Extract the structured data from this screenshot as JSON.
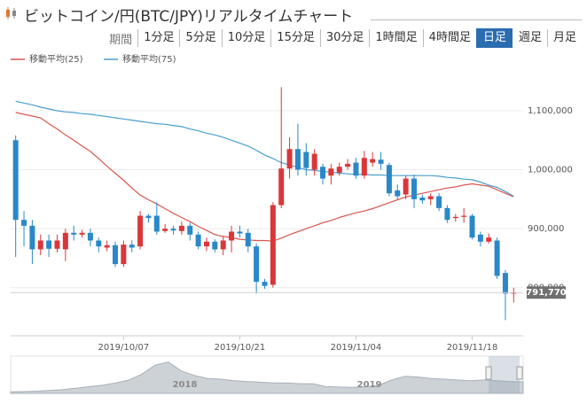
{
  "header": {
    "title": "ビットコイン/円(BTC/JPY)リアルタイムチャート"
  },
  "toolbar": {
    "period_label": "期間",
    "periods": [
      "1分足",
      "5分足",
      "10分足",
      "15分足",
      "30分足",
      "1時間足",
      "4時間足",
      "日足",
      "週足",
      "月足"
    ],
    "active_period": "日足"
  },
  "chart_data": {
    "type": "candlestick",
    "up_color": "#d9373a",
    "down_color": "#2a88c8",
    "categories": [
      null,
      null,
      null,
      null,
      null,
      null,
      null,
      null,
      null,
      null,
      null,
      null,
      null,
      "2019/10/07",
      null,
      null,
      null,
      null,
      null,
      null,
      null,
      null,
      null,
      null,
      null,
      null,
      null,
      "2019/10/21",
      null,
      null,
      null,
      null,
      null,
      null,
      null,
      null,
      null,
      null,
      null,
      null,
      null,
      "2019/11/04",
      null,
      null,
      null,
      null,
      null,
      null,
      null,
      null,
      null,
      null,
      null,
      null,
      null,
      "2019/11/18",
      null,
      null,
      null,
      null,
      null
    ],
    "open": [
      1050000,
      915000,
      905000,
      865000,
      880000,
      866000,
      865000,
      893000,
      890000,
      893000,
      880000,
      868000,
      872000,
      840000,
      873000,
      870000,
      922000,
      922000,
      896000,
      900000,
      896000,
      905000,
      890000,
      870000,
      878000,
      865000,
      880000,
      895000,
      893000,
      870000,
      810000,
      805000,
      940000,
      1002000,
      1035000,
      1030000,
      1000000,
      1005000,
      990000,
      995000,
      1005000,
      1012000,
      990000,
      1012000,
      1017000,
      1008000,
      965000,
      958000,
      985000,
      953000,
      950000,
      955000,
      935000,
      918000,
      920000,
      922000,
      890000,
      878000,
      880000,
      825000,
      790000
    ],
    "high": [
      1058000,
      930000,
      915000,
      890000,
      890000,
      890000,
      900000,
      905000,
      898000,
      900000,
      885000,
      880000,
      878000,
      880000,
      880000,
      930000,
      925000,
      945000,
      908000,
      905000,
      912000,
      910000,
      895000,
      885000,
      882000,
      888000,
      905000,
      905000,
      900000,
      875000,
      815000,
      945000,
      1140000,
      1055000,
      1078000,
      1045000,
      1035000,
      1010000,
      1010000,
      1012000,
      1018000,
      1020000,
      1032000,
      1030000,
      1030000,
      1012000,
      975000,
      990000,
      992000,
      958000,
      960000,
      960000,
      940000,
      925000,
      935000,
      925000,
      895000,
      892000,
      885000,
      830000,
      800000
    ],
    "low": [
      852000,
      870000,
      840000,
      855000,
      852000,
      860000,
      845000,
      880000,
      885000,
      870000,
      860000,
      862000,
      835000,
      835000,
      860000,
      865000,
      910000,
      890000,
      893000,
      890000,
      890000,
      880000,
      865000,
      862000,
      860000,
      855000,
      860000,
      885000,
      860000,
      790000,
      798000,
      800000,
      935000,
      985000,
      990000,
      990000,
      990000,
      975000,
      975000,
      990000,
      1000000,
      985000,
      985000,
      1005000,
      1000000,
      955000,
      950000,
      950000,
      935000,
      942000,
      940000,
      930000,
      910000,
      912000,
      910000,
      882000,
      870000,
      875000,
      815000,
      745000,
      775000
    ],
    "close": [
      915000,
      905000,
      865000,
      880000,
      866000,
      880000,
      893000,
      890000,
      893000,
      880000,
      870000,
      872000,
      840000,
      873000,
      868000,
      922000,
      918000,
      895000,
      900000,
      897000,
      905000,
      890000,
      870000,
      878000,
      865000,
      880000,
      895000,
      892000,
      870000,
      810000,
      803000,
      940000,
      1002000,
      1035000,
      1000000,
      1003000,
      1027000,
      985000,
      1002000,
      1005000,
      1010000,
      990000,
      1020000,
      1018000,
      1010000,
      960000,
      955000,
      985000,
      950000,
      948000,
      955000,
      935000,
      915000,
      920000,
      922000,
      885000,
      878000,
      885000,
      820000,
      790000,
      791770
    ],
    "series": [
      {
        "name": "移動平均(25)",
        "color": "#d8574f",
        "values": [
          1097000,
          1094000,
          1091000,
          1088000,
          1078000,
          1069000,
          1059000,
          1050000,
          1040000,
          1031000,
          1019000,
          1006000,
          994000,
          982000,
          969000,
          957000,
          949000,
          942000,
          934000,
          926000,
          919000,
          912000,
          904000,
          897000,
          890000,
          887000,
          885000,
          882000,
          881000,
          880000,
          880000,
          879000,
          884000,
          890000,
          895000,
          900000,
          905000,
          910000,
          914000,
          919000,
          923000,
          927000,
          930000,
          934000,
          939000,
          944000,
          949000,
          954000,
          957000,
          960000,
          963000,
          966000,
          969000,
          971000,
          974000,
          976000,
          974000,
          972000,
          966000,
          960000,
          954000
        ]
      },
      {
        "name": "移動平均(75)",
        "color": "#4a9fcd",
        "values": [
          1116000,
          1113000,
          1110000,
          1106000,
          1103000,
          1100000,
          1098000,
          1097000,
          1095000,
          1094000,
          1092000,
          1090000,
          1088000,
          1086000,
          1084000,
          1082000,
          1080000,
          1078000,
          1077000,
          1075000,
          1073000,
          1069000,
          1066000,
          1062000,
          1059000,
          1055000,
          1050000,
          1045000,
          1040000,
          1033000,
          1025000,
          1019000,
          1012000,
          1008000,
          1004000,
          1000000,
          999000,
          997000,
          996000,
          994000,
          993000,
          992000,
          992000,
          991000,
          991000,
          990000,
          990000,
          990000,
          990000,
          990000,
          990000,
          989000,
          987000,
          986000,
          984000,
          983000,
          979000,
          974000,
          970000,
          963000,
          955000
        ]
      }
    ],
    "ylim": [
      720000,
      1145000
    ],
    "yticks": [
      {
        "value": 800000,
        "label": "800,000"
      },
      {
        "value": 900000,
        "label": "900,000"
      },
      {
        "value": 1000000,
        "label": "1,000,000"
      },
      {
        "value": 1100000,
        "label": "1,100,000"
      }
    ],
    "grid": true,
    "last_price": {
      "value": 791770,
      "label": "791,770"
    },
    "navigator": {
      "labels": [
        "2018",
        "2019"
      ],
      "values": [
        100000,
        120000,
        150000,
        200000,
        250000,
        350000,
        450000,
        550000,
        700000,
        900000,
        1300000,
        1900000,
        2100000,
        1500000,
        1200000,
        1000000,
        950000,
        850000,
        800000,
        750000,
        700000,
        700000,
        650000,
        650000,
        450000,
        420000,
        400000,
        430000,
        550000,
        900000,
        1150000,
        1100000,
        1000000,
        950000,
        900000,
        850000,
        900000,
        850000,
        800000,
        780000
      ],
      "ylim": [
        0,
        2500000
      ]
    }
  }
}
